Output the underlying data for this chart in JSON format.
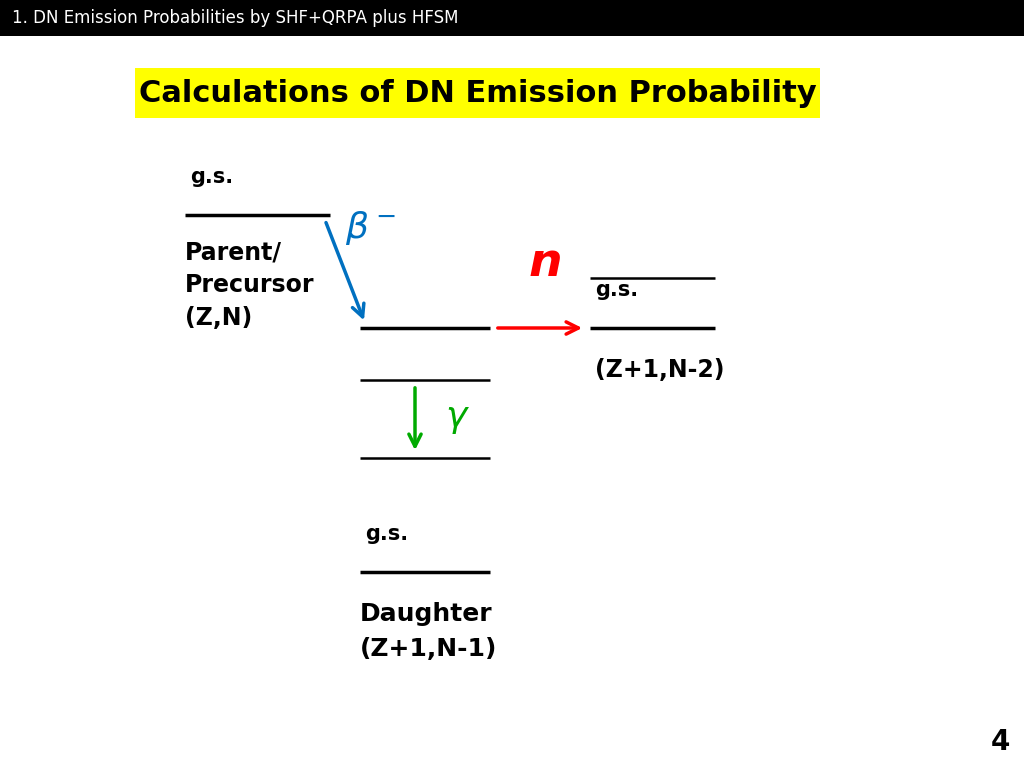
{
  "title_bar_text": "1. DN Emission Probabilities by SHF+QRPA plus HFSM",
  "title_bar_bg": "#000000",
  "title_bar_color": "#ffffff",
  "title_bar_fontsize": 12,
  "slide_title": "Calculations of DN Emission Probability",
  "slide_title_bg": "#ffff00",
  "slide_title_color": "#000000",
  "slide_title_fontsize": 22,
  "page_number": "4",
  "background_color": "#ffffff",
  "beta_color": "#0070c0",
  "n_color": "#ff0000",
  "gamma_color": "#00aa00",
  "black": "#000000"
}
